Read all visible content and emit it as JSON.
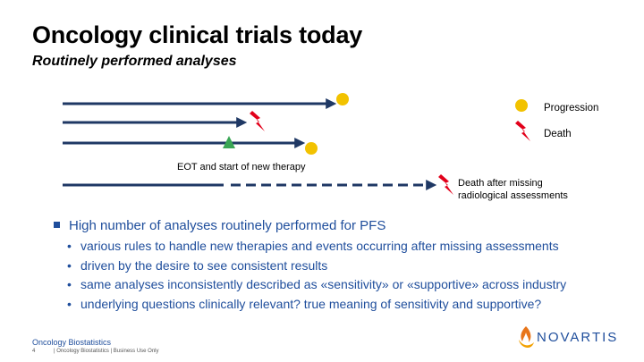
{
  "title": "Oncology clinical trials today",
  "subtitle": "Routinely performed analyses",
  "legend": {
    "progression": "Progression",
    "death": "Death",
    "death_missing_line1": "Death after missing",
    "death_missing_line2": "radiological assessments"
  },
  "annotation_eot": "EOT and start of new therapy",
  "bullet_main": "High number of analyses routinely performed for PFS",
  "sub_bullets": [
    "various rules to handle new therapies and events occurring after missing assessments",
    "driven by the desire to see consistent results",
    "same analyses inconsistently described as «sensitivity» or «supportive» across industry",
    "underlying questions clinically relevant? true meaning of sensitivity and supportive?"
  ],
  "bullet_glyph": "•",
  "footer": {
    "org": "Oncology Biostatistics",
    "page": "4",
    "note": "| Oncology Biostatistics | Business Use Only"
  },
  "logo_text": "NOVARTIS",
  "colors": {
    "navy": "#1f3864",
    "accent_blue": "#1f4e9c",
    "progression_yellow": "#f2c200",
    "death_red": "#e2001a",
    "eot_green": "#3aa655",
    "logo_orange": "#e8751a"
  }
}
